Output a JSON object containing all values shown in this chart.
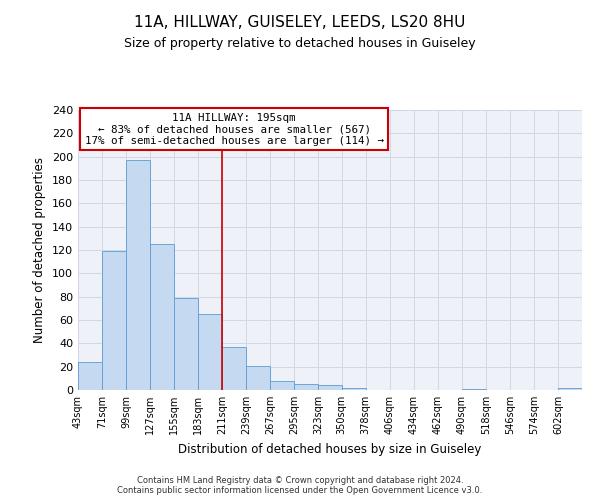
{
  "title": "11A, HILLWAY, GUISELEY, LEEDS, LS20 8HU",
  "subtitle": "Size of property relative to detached houses in Guiseley",
  "xlabel": "Distribution of detached houses by size in Guiseley",
  "ylabel": "Number of detached properties",
  "bin_labels": [
    "43sqm",
    "71sqm",
    "99sqm",
    "127sqm",
    "155sqm",
    "183sqm",
    "211sqm",
    "239sqm",
    "267sqm",
    "295sqm",
    "323sqm",
    "350sqm",
    "378sqm",
    "406sqm",
    "434sqm",
    "462sqm",
    "490sqm",
    "518sqm",
    "546sqm",
    "574sqm",
    "602sqm"
  ],
  "bar_values": [
    24,
    119,
    197,
    125,
    79,
    65,
    37,
    21,
    8,
    5,
    4,
    2,
    0,
    0,
    0,
    0,
    1,
    0,
    0,
    0,
    2
  ],
  "bar_color": "#c5d9f0",
  "bar_edge_color": "#5b9bd5",
  "bin_edges": [
    43,
    71,
    99,
    127,
    155,
    183,
    211,
    239,
    267,
    295,
    323,
    350,
    378,
    406,
    434,
    462,
    490,
    518,
    546,
    574,
    602
  ],
  "bin_width": 28,
  "ylim": [
    0,
    240
  ],
  "yticks": [
    0,
    20,
    40,
    60,
    80,
    100,
    120,
    140,
    160,
    180,
    200,
    220,
    240
  ],
  "annotation_title": "11A HILLWAY: 195sqm",
  "annotation_line1": "← 83% of detached houses are smaller (567)",
  "annotation_line2": "17% of semi-detached houses are larger (114) →",
  "annotation_box_color": "#ffffff",
  "annotation_box_edge": "#cc0000",
  "vline_x": 211,
  "vline_color": "#cc0000",
  "footer1": "Contains HM Land Registry data © Crown copyright and database right 2024.",
  "footer2": "Contains public sector information licensed under the Open Government Licence v3.0.",
  "grid_color": "#d0d8e8",
  "background_color": "#eef2f8",
  "title_fontsize": 11,
  "subtitle_fontsize": 9
}
